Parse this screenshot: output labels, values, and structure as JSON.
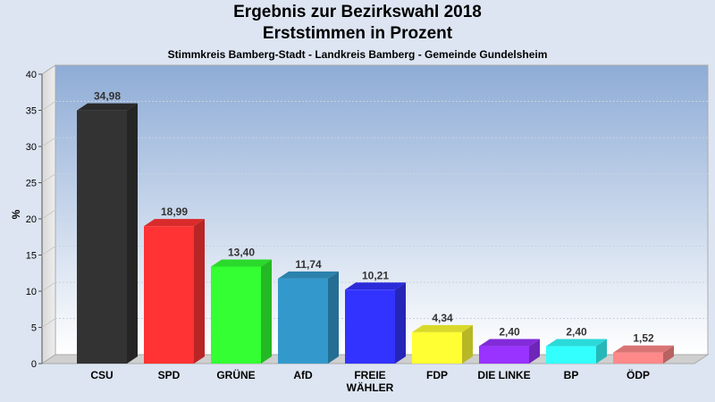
{
  "chart_data": {
    "type": "bar",
    "title": "Ergebnis zur Bezirkswahl 2018",
    "title_line2": "Erststimmen in Prozent",
    "subtitle": "Stimmkreis Bamberg-Stadt - Landkreis Bamberg - Gemeinde Gundelsheim",
    "ylabel": "%",
    "ylim": [
      0,
      40
    ],
    "yticks": [
      0,
      5,
      10,
      15,
      20,
      25,
      30,
      35,
      40
    ],
    "categories": [
      "CSU",
      "SPD",
      "GRÜNE",
      "AfD",
      "FREIE WÄHLER",
      "FDP",
      "DIE LINKE",
      "BP",
      "ÖDP"
    ],
    "category_lines": [
      [
        "CSU"
      ],
      [
        "SPD"
      ],
      [
        "GRÜNE"
      ],
      [
        "AfD"
      ],
      [
        "FREIE",
        "WÄHLER"
      ],
      [
        "FDP"
      ],
      [
        "DIE LINKE"
      ],
      [
        "BP"
      ],
      [
        "ÖDP"
      ]
    ],
    "values": [
      34.98,
      18.99,
      13.4,
      11.74,
      10.21,
      4.34,
      2.4,
      2.4,
      1.52
    ],
    "value_labels": [
      "34,98",
      "18,99",
      "13,40",
      "11,74",
      "10,21",
      "4,34",
      "2,40",
      "2,40",
      "1,52"
    ],
    "colors": [
      "#333333",
      "#ff3333",
      "#33ff33",
      "#3399cc",
      "#3333ff",
      "#ffff33",
      "#9933ff",
      "#33ffff",
      "#ff8888"
    ],
    "grid": true,
    "legend": "none"
  }
}
